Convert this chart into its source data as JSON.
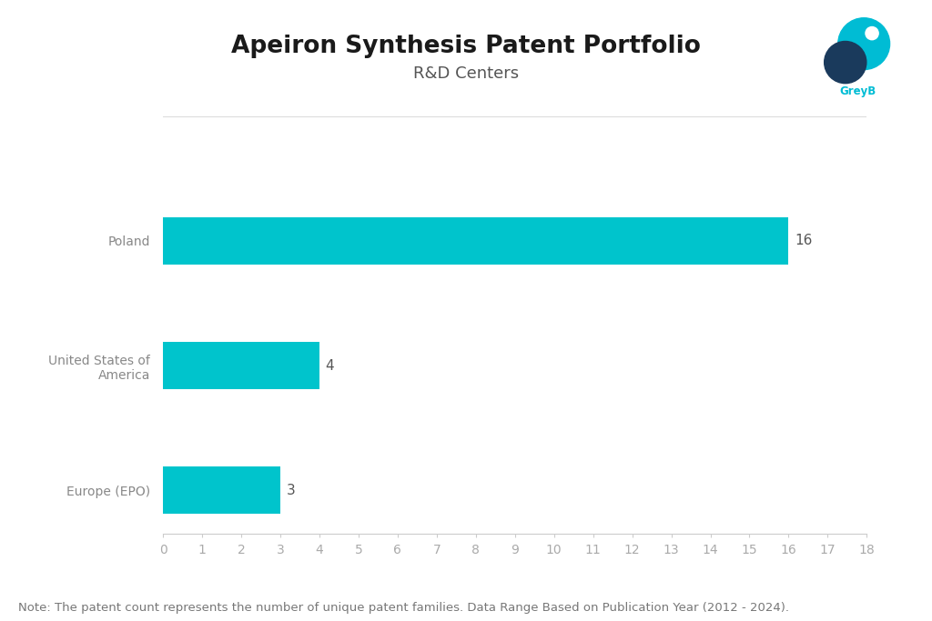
{
  "title": "Apeiron Synthesis Patent Portfolio",
  "subtitle": "R&D Centers",
  "categories": [
    "Europe (EPO)",
    "United States of\nAmerica",
    "Poland"
  ],
  "values": [
    3,
    4,
    16
  ],
  "bar_color": "#00C4CC",
  "xlim": [
    0,
    18
  ],
  "xticks": [
    0,
    1,
    2,
    3,
    4,
    5,
    6,
    7,
    8,
    9,
    10,
    11,
    12,
    13,
    14,
    15,
    16,
    17,
    18
  ],
  "note": "Note: The patent count represents the number of unique patent families. Data Range Based on Publication Year (2012 - 2024).",
  "background_color": "#ffffff",
  "title_fontsize": 19,
  "subtitle_fontsize": 13,
  "bar_height": 0.38,
  "value_label_fontsize": 11,
  "tick_fontsize": 10,
  "ytick_fontsize": 10,
  "note_fontsize": 9.5
}
